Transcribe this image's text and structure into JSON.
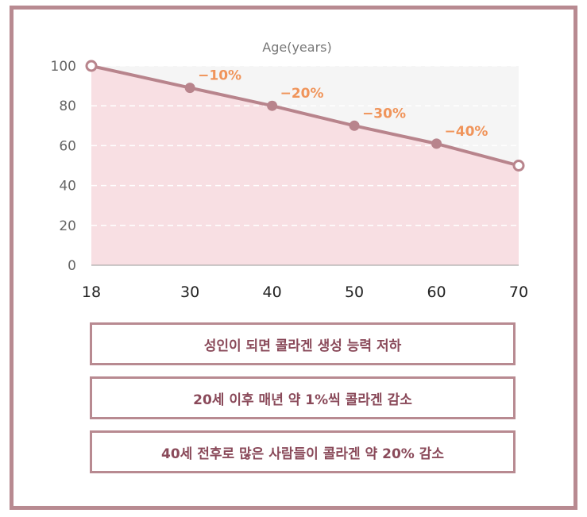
{
  "chart_data": {
    "type": "line",
    "title": "Age(years)",
    "xlabel": "",
    "ylabel": "",
    "x": [
      18,
      30,
      40,
      50,
      60,
      70
    ],
    "xticks": [
      "18",
      "30",
      "40",
      "50",
      "60",
      "70"
    ],
    "y": [
      100,
      89,
      80,
      70,
      61,
      50
    ],
    "point_labels": [
      "",
      "−10%",
      "−20%",
      "−30%",
      "−40%",
      ""
    ],
    "yticks": [
      "0",
      "20",
      "40",
      "60",
      "80",
      "100"
    ],
    "ylim": [
      0,
      100
    ],
    "grid": "dashed horizontal",
    "area_fill": true,
    "colors": {
      "line": "#b8848c",
      "area": "#f8dfe3",
      "plot_bg": "#f5f5f5",
      "label": "#f0945a",
      "frame": "#b88a91"
    }
  },
  "notes": [
    "성인이 되면 콜라겐 생성 능력 저하",
    "20세 이후 매년 약 1%씩 콜라겐 감소",
    "40세 전후로 많은 사람들이 콜라겐 약 20% 감소"
  ]
}
